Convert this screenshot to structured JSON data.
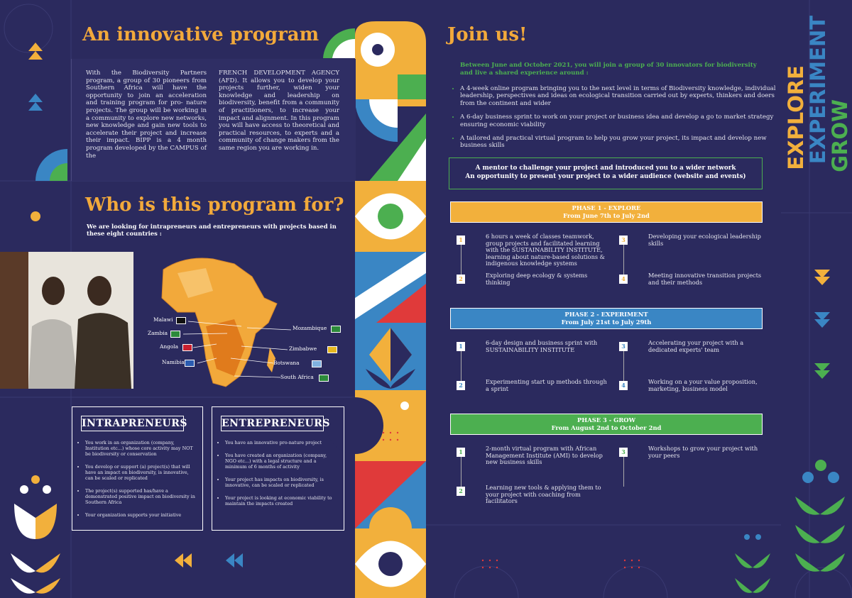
{
  "program": {
    "title": "An innovative program",
    "column1": "With the Biodiversity Partners program, a group of 30 pioneers from Southern Africa will have the opportunity to join an acceleration and training program for pro- nature projects. The group will be working in a community to explore new networks, new knowledge and gain new tools to accelerate their project and increase their impact. BIPP is a 4 month program developed by the CAMPUS of the",
    "column2": "FRENCH DEVELOPMENT AGENCY (AFD). It allows you to develop your projects further, widen your knowledge and leadership on biodiversity, benefit from a community of practitioners, to increase your impact and alignment. In this program you will have access to theoretical and practical resources, to experts and a community of change makers from the same region you are working in."
  },
  "audience": {
    "title": "Who is this program for?",
    "subtitle": "We are looking for intrapreneurs and entrepreneurs with projects based in these eight countries :",
    "countries": [
      "Malawi",
      "Zambia",
      "Angola",
      "Namibia",
      "Mozambique",
      "Zimbabwe",
      "Botswana",
      "South Africa"
    ],
    "intrapreneurs": {
      "title": "INTRAPRENEURS",
      "items": [
        "You work in an organization (company, Institution etc...) whose core activity may NOT be biodiversity or conservation",
        "You develop or support (a) project(s) that will have an impact on biodiversity, is innovative, can be scaled or replicated",
        "The project(s) supported has/have a demonstrated positive impact on biodiversity in Southern Africa",
        "Your organization supports your initiative"
      ]
    },
    "entrepreneurs": {
      "title": "ENTREPRENEURS",
      "items": [
        "You have an innovative pro-nature project",
        "You have created an organization (company, NGO etc...) with a legal structure and a minimum of 6 months of activity",
        "Your project has impacts on biodiversity, is innovative, can be scaled or replicated",
        "Your project is looking at economic viability to maintain the impacts created"
      ]
    }
  },
  "join": {
    "title": "Join us!",
    "intro": "Between June and October 2021, you will join a group of 30 innovators for biodiversity and live a shared experience around :",
    "bullets": [
      "A 4-week online program bringing you to the next level in terms of Biodiversity knowledge, individual leadership, perspectives and ideas on ecological transition carried out by experts, thinkers and doers from the continent and wider",
      "A 6-day business sprint to work on your project or business idea and develop a go to market strategy ensuring economic viability",
      "A tailored and practical virtual program to help you grow your project, its impact and develop new business skills"
    ],
    "mentor": [
      "A mentor to challenge your project and introduced you to a wider network",
      "An opportunity to present your project to a wider audience (website and events)"
    ],
    "phases": [
      {
        "title": "PHASE 1 - EXPLORE",
        "dates": "From June 7th to July 2nd",
        "color": "#f2b03c",
        "items": [
          {
            "number": 1,
            "text": "6 hours a week of classes teamwork, group projects and facilitated learning with the SUSTAINABILITY INSTITUTE, learning about nature-based solutions & indigenous knowledge systems"
          },
          {
            "number": 2,
            "text": "Exploring deep ecology & systems thinking"
          },
          {
            "number": 3,
            "text": "Developing your ecological leadership skills"
          },
          {
            "number": 4,
            "text": "Meeting innovative transition projects and their methods"
          }
        ]
      },
      {
        "title": "PHASE 2 - EXPERIMENT",
        "dates": "From July 21st to July 29th",
        "color": "#3a86c4",
        "items": [
          {
            "number": 1,
            "text": "6-day design and business sprint with SUSTAINABILITY INSTITUTE"
          },
          {
            "number": 2,
            "text": "Experimenting start up methods through a sprint"
          },
          {
            "number": 3,
            "text": "Accelerating your project with a dedicated experts' team"
          },
          {
            "number": 4,
            "text": "Working on a your value proposition, marketing, business model"
          }
        ]
      },
      {
        "title": "PHASE 3 - GROW",
        "dates": "From August 2nd to October 2nd",
        "color": "#4caf50",
        "items": [
          {
            "number": 1,
            "text": "2-month virtual program with African Management Institute (AMI) to develop new business skills"
          },
          {
            "number": 2,
            "text": "Learning new tools & applying them to your project with coaching from facilitators"
          },
          {
            "number": 3,
            "text": "Workshops to grow your project with your peers"
          }
        ]
      }
    ]
  },
  "side": {
    "words": [
      {
        "text": "EXPLORE",
        "color": "#f2b03c"
      },
      {
        "text": "EXPERIMENT",
        "color": "#3a86c4"
      },
      {
        "text": "GROW",
        "color": "#4caf50"
      }
    ]
  }
}
